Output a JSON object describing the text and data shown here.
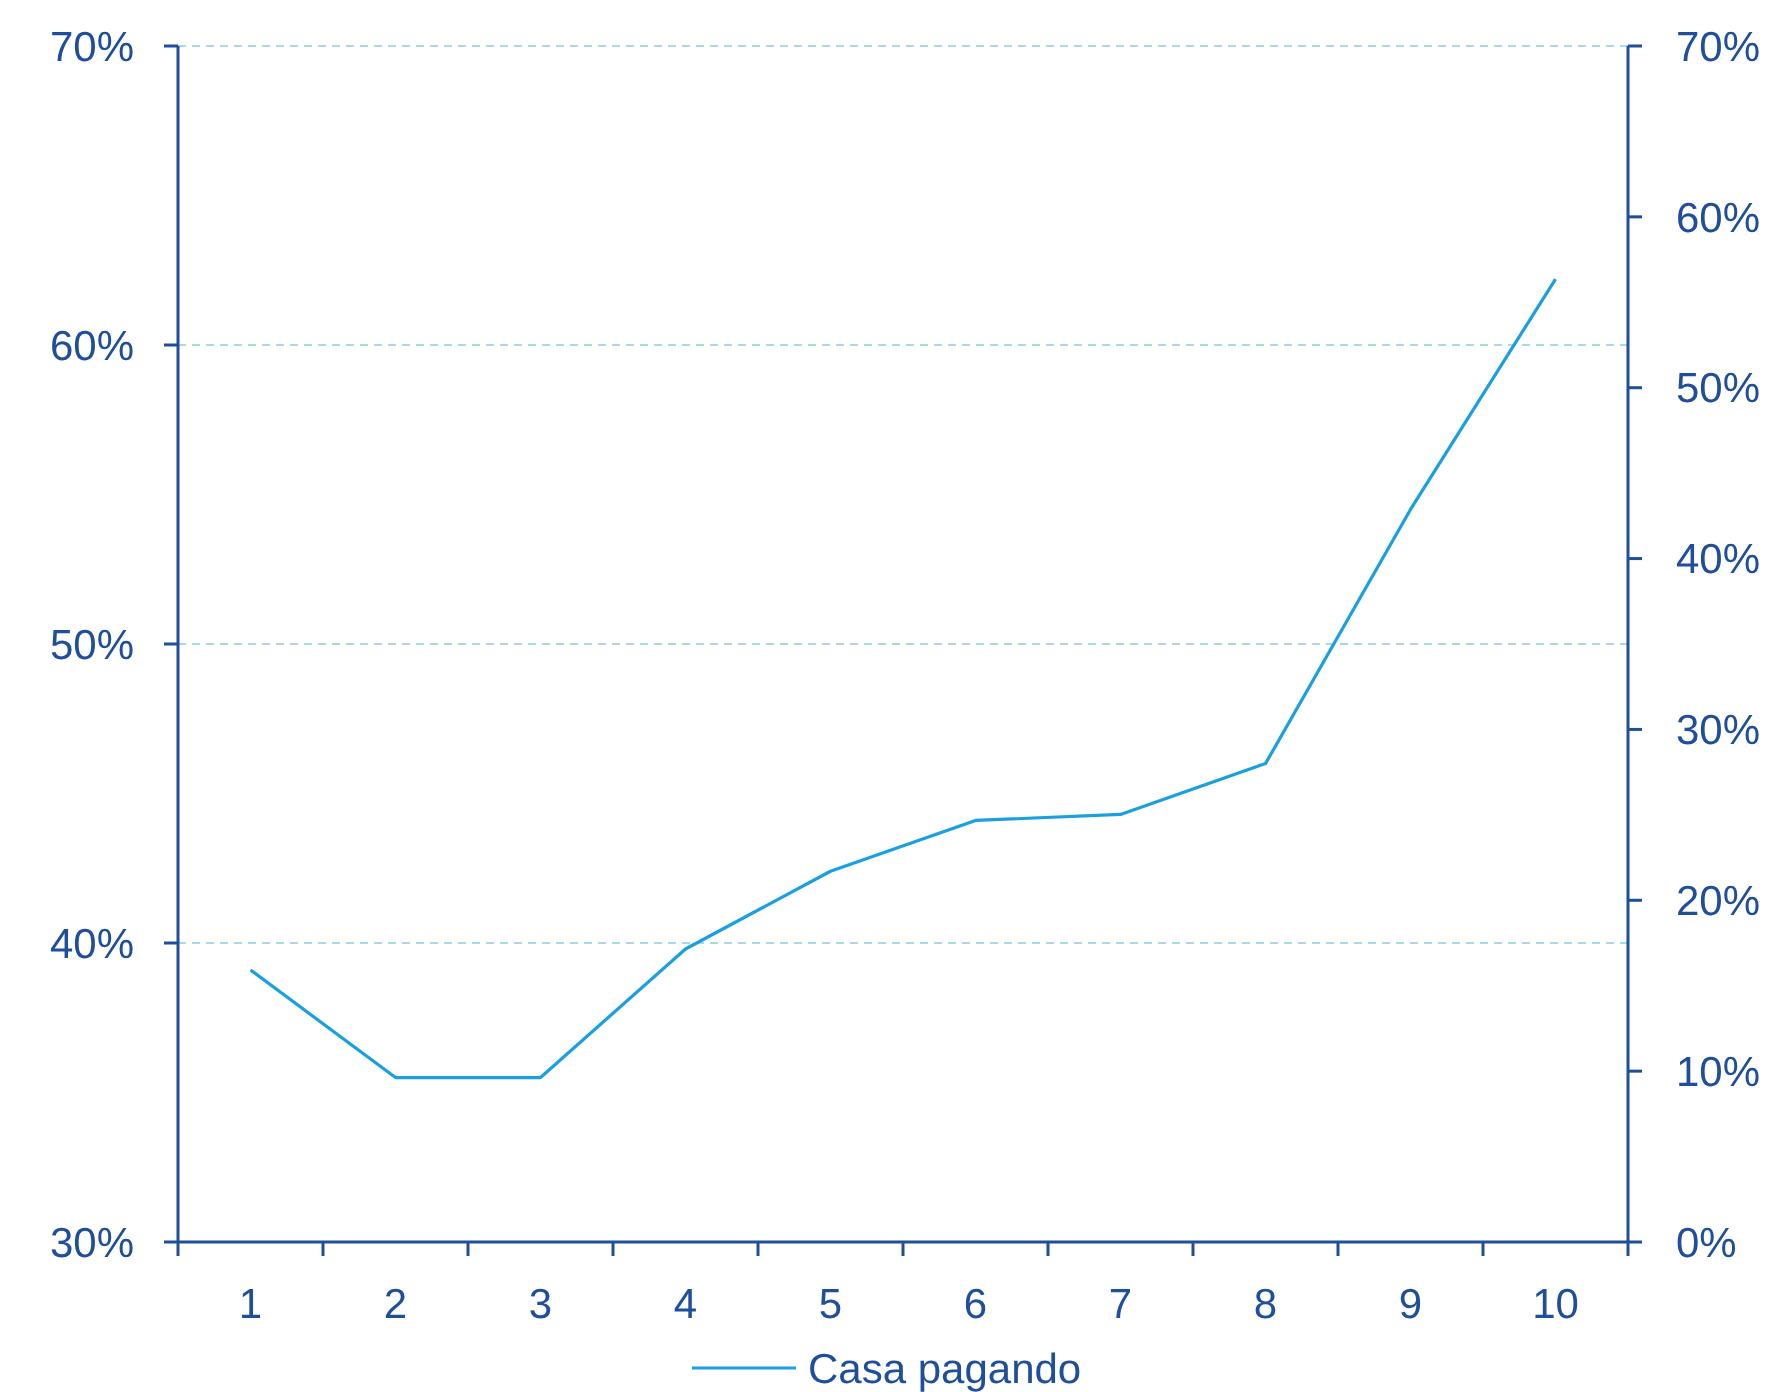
{
  "chart_data": {
    "type": "line",
    "categories": [
      "1",
      "2",
      "3",
      "4",
      "5",
      "6",
      "7",
      "8",
      "9",
      "10"
    ],
    "series": [
      {
        "name": "Casa pagando",
        "color": "#1aa0e0",
        "values": [
          39.1,
          35.5,
          35.5,
          39.8,
          42.4,
          44.1,
          44.3,
          46.0,
          54.5,
          62.2
        ]
      }
    ],
    "ylim": [
      30,
      70
    ],
    "yticks": [
      {
        "value": 30,
        "label": "30%"
      },
      {
        "value": 40,
        "label": "40%"
      },
      {
        "value": 50,
        "label": "50%"
      },
      {
        "value": 60,
        "label": "60%"
      },
      {
        "value": 70,
        "label": "70%"
      }
    ],
    "y2lim": [
      0,
      70
    ],
    "y2ticks": [
      {
        "value": 0,
        "label": "0%"
      },
      {
        "value": 10,
        "label": "10%"
      },
      {
        "value": 20,
        "label": "20%"
      },
      {
        "value": 30,
        "label": "30%"
      },
      {
        "value": 40,
        "label": "40%"
      },
      {
        "value": 50,
        "label": "50%"
      },
      {
        "value": 60,
        "label": "60%"
      },
      {
        "value": 70,
        "label": "70%"
      }
    ],
    "grid": "y",
    "legend": "bottom",
    "marker": "none",
    "line_style": "solid"
  }
}
